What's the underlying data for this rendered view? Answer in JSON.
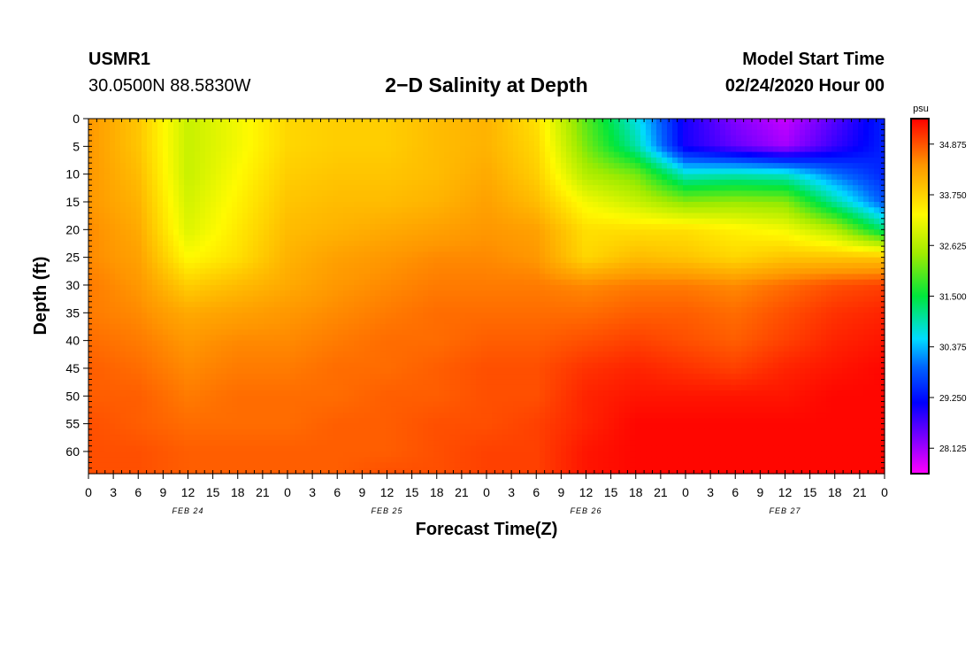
{
  "header": {
    "station_id": "USMR1",
    "location": "30.0500N 88.5830W",
    "title": "2−D Salinity at Depth",
    "model_start_label": "Model Start Time",
    "model_start_value": "02/24/2020 Hour 00"
  },
  "colorbar": {
    "unit": "psu",
    "ticks": [
      "34.875",
      "33.750",
      "32.625",
      "31.500",
      "30.375",
      "29.250",
      "28.125"
    ],
    "min": 27.56,
    "max": 35.44
  },
  "chart_data": {
    "type": "heatmap",
    "xlabel": "Forecast Time(Z)",
    "ylabel": "Depth (ft)",
    "x_tick_labels": [
      "0",
      "3",
      "6",
      "9",
      "12",
      "15",
      "18",
      "21",
      "0",
      "3",
      "6",
      "9",
      "12",
      "15",
      "18",
      "21",
      "0",
      "3",
      "6",
      "9",
      "12",
      "15",
      "18",
      "21",
      "0",
      "3",
      "6",
      "9",
      "12",
      "15",
      "18",
      "21",
      "0"
    ],
    "date_labels": [
      {
        "label": "FEB 24",
        "at_hour": 12
      },
      {
        "label": "FEB 25",
        "at_hour": 36
      },
      {
        "label": "FEB 26",
        "at_hour": 60
      },
      {
        "label": "FEB 27",
        "at_hour": 84
      }
    ],
    "x_range_hours": [
      0,
      96
    ],
    "y_ticks": [
      "0",
      "5",
      "10",
      "15",
      "20",
      "25",
      "30",
      "35",
      "40",
      "45",
      "50",
      "55",
      "60"
    ],
    "y_range_ft": [
      0,
      64
    ],
    "depth_ft": [
      0,
      5,
      10,
      15,
      20,
      25,
      30,
      35,
      40,
      45,
      50,
      55,
      60,
      64
    ],
    "hours": [
      0,
      6,
      12,
      18,
      24,
      30,
      36,
      42,
      48,
      54,
      60,
      66,
      72,
      78,
      84,
      90,
      96
    ],
    "salinity": [
      [
        34.4,
        33.9,
        32.8,
        33.2,
        33.7,
        33.8,
        33.8,
        34.0,
        34.1,
        33.6,
        32.0,
        30.7,
        29.0,
        28.3,
        27.9,
        28.6,
        29.4
      ],
      [
        34.4,
        33.9,
        32.8,
        33.2,
        33.7,
        33.8,
        33.8,
        34.0,
        34.1,
        33.7,
        32.2,
        31.0,
        29.0,
        28.5,
        28.1,
        28.8,
        29.4
      ],
      [
        34.4,
        34.0,
        32.8,
        33.3,
        33.8,
        33.9,
        33.9,
        34.0,
        34.2,
        33.8,
        32.6,
        32.2,
        30.8,
        30.9,
        30.8,
        30.0,
        29.4
      ],
      [
        34.4,
        34.1,
        32.9,
        33.4,
        33.9,
        34.0,
        34.0,
        34.1,
        34.3,
        34.0,
        33.2,
        32.8,
        32.3,
        32.4,
        32.3,
        31.0,
        29.8
      ],
      [
        34.5,
        34.2,
        33.0,
        33.5,
        34.0,
        34.1,
        34.2,
        34.3,
        34.4,
        34.3,
        33.6,
        33.6,
        33.6,
        33.4,
        33.2,
        32.6,
        31.2
      ],
      [
        34.5,
        34.3,
        33.3,
        33.6,
        34.1,
        34.3,
        34.4,
        34.5,
        34.5,
        34.4,
        33.7,
        34.0,
        33.9,
        33.7,
        33.9,
        33.9,
        33.9
      ],
      [
        34.6,
        34.4,
        33.8,
        34.0,
        34.2,
        34.4,
        34.5,
        34.6,
        34.6,
        34.6,
        34.5,
        34.6,
        34.6,
        34.5,
        34.7,
        34.9,
        35.0
      ],
      [
        34.6,
        34.5,
        34.2,
        34.3,
        34.4,
        34.5,
        34.6,
        34.7,
        34.7,
        34.7,
        34.7,
        34.8,
        34.8,
        34.7,
        34.9,
        35.1,
        35.2
      ],
      [
        34.7,
        34.6,
        34.4,
        34.5,
        34.5,
        34.6,
        34.7,
        34.7,
        34.8,
        34.8,
        34.9,
        35.0,
        34.9,
        34.8,
        35.0,
        35.2,
        35.3
      ],
      [
        34.8,
        34.7,
        34.5,
        34.6,
        34.6,
        34.7,
        34.7,
        34.8,
        34.9,
        34.9,
        35.1,
        35.2,
        35.1,
        35.0,
        35.2,
        35.3,
        35.4
      ],
      [
        34.8,
        34.8,
        34.6,
        34.7,
        34.7,
        34.7,
        34.8,
        34.8,
        34.9,
        34.9,
        35.2,
        35.3,
        35.3,
        35.3,
        35.3,
        35.4,
        35.4
      ],
      [
        34.9,
        34.8,
        34.7,
        34.7,
        34.7,
        34.8,
        34.8,
        34.9,
        34.9,
        35.0,
        35.2,
        35.4,
        35.4,
        35.4,
        35.4,
        35.4,
        35.4
      ],
      [
        34.9,
        34.9,
        34.8,
        34.8,
        34.8,
        34.8,
        34.8,
        34.9,
        35.0,
        35.0,
        35.3,
        35.4,
        35.4,
        35.4,
        35.4,
        35.4,
        35.4
      ],
      [
        34.9,
        34.9,
        34.8,
        34.8,
        34.8,
        34.8,
        34.9,
        34.9,
        35.0,
        35.0,
        35.3,
        35.4,
        35.4,
        35.4,
        35.4,
        35.4,
        35.4
      ]
    ]
  }
}
